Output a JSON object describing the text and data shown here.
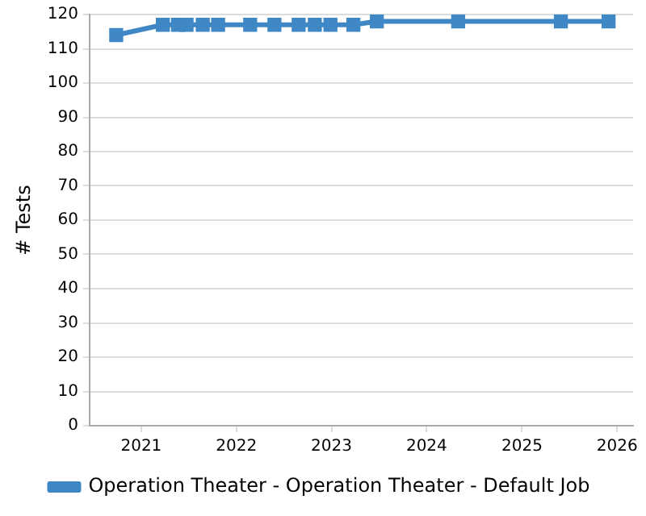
{
  "chart_data": {
    "type": "line",
    "ylabel": "# Tests",
    "x": [
      "2020-09-27",
      "2021-03-25",
      "2021-05-22",
      "2021-06-24",
      "2021-08-25",
      "2021-10-23",
      "2022-02-23",
      "2022-05-27",
      "2022-08-28",
      "2022-10-29",
      "2022-12-28",
      "2023-03-26",
      "2023-06-24",
      "2024-05-01",
      "2025-05-30",
      "2025-11-29"
    ],
    "series": [
      {
        "name": "Operation Theater - Operation Theater - Default Job",
        "color": "#3f88c5",
        "values": [
          114,
          117,
          117,
          117,
          117,
          117,
          117,
          117,
          117,
          117,
          117,
          117,
          118,
          118,
          118,
          118
        ]
      }
    ],
    "xlim": [
      "2020-06-17",
      "2026-03-03"
    ],
    "xticks": [
      "2021",
      "2022",
      "2023",
      "2024",
      "2025",
      "2026"
    ],
    "ylim": [
      0,
      120
    ],
    "yticks": [
      0,
      10,
      20,
      30,
      40,
      50,
      60,
      70,
      80,
      90,
      100,
      110,
      120
    ],
    "grid": "y",
    "legend": "bottom",
    "marker": "square",
    "line_style": "solid"
  }
}
